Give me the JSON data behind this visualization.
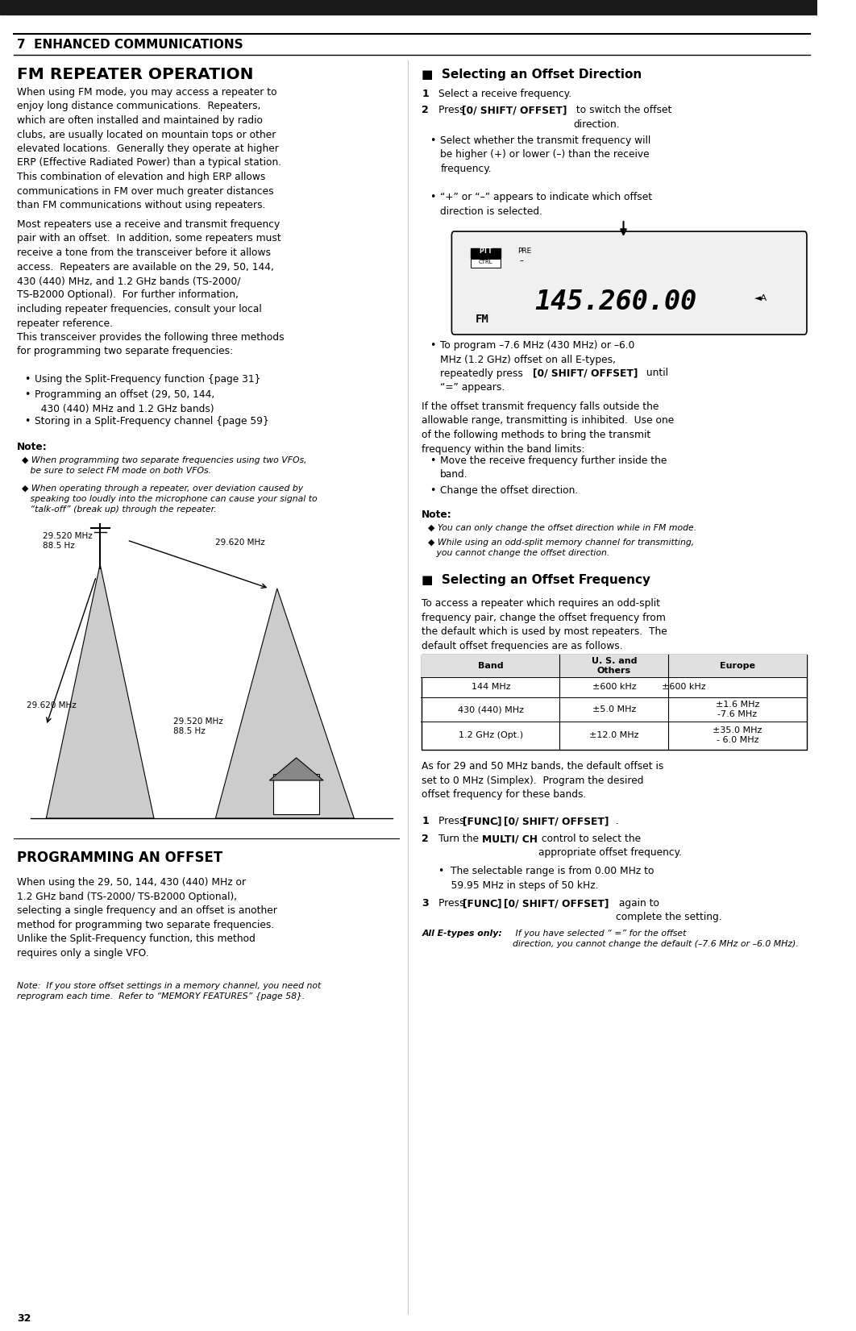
{
  "page_number": "32",
  "chapter_header": "7  ENHANCED COMMUNICATIONS",
  "section_title": "FM REPEATER OPERATION",
  "section2_title": "PROGRAMMING AN OFFSET",
  "bg_color": "#ffffff",
  "header_bar_color": "#1a1a1a",
  "table": {
    "headers": [
      "Band",
      "U. S. and\nOthers",
      "Europe"
    ],
    "rows": [
      [
        "144 MHz",
        "±600 kHz",
        ""
      ],
      [
        "430 (440) MHz",
        "±5.0 MHz",
        "±1.6 MHz\n-7.6 MHz"
      ],
      [
        "1.2 GHz (Opt.)",
        "±12.0 MHz",
        "±35.0 MHz\n- 6.0 MHz"
      ]
    ]
  }
}
